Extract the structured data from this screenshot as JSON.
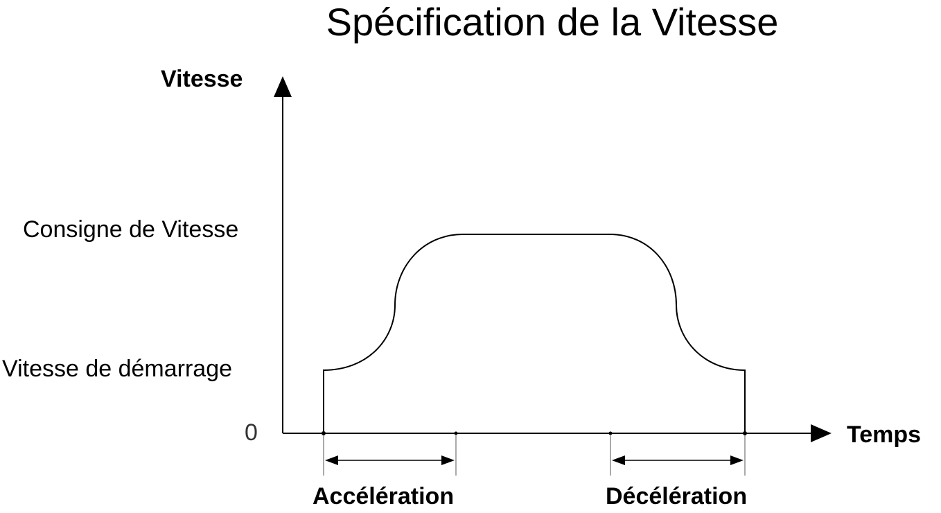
{
  "title": "Spécification de la Vitesse",
  "axes": {
    "y_label": "Vitesse",
    "x_label": "Temps",
    "zero_label": "0"
  },
  "levels": {
    "target": "Consigne de Vitesse",
    "start": "Vitesse de démarrage"
  },
  "phases": {
    "acceleration": "Accélération",
    "deceleration": "Décélération"
  },
  "colors": {
    "line": "#000000",
    "background": "#ffffff"
  }
}
